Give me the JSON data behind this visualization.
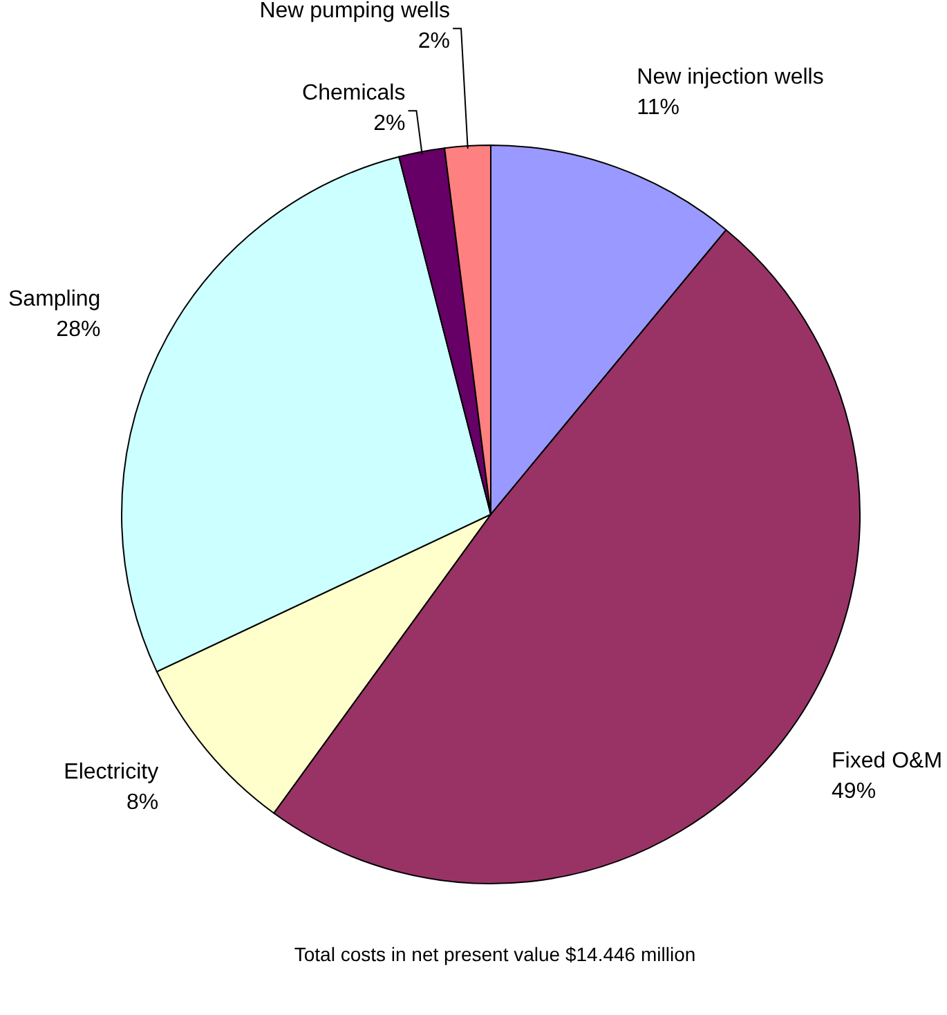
{
  "chart_data": {
    "type": "pie",
    "categories": [
      "New injection wells",
      "Fixed O&M",
      "Electricity",
      "Sampling",
      "Chemicals",
      "New pumping wells"
    ],
    "values": [
      11,
      49,
      8,
      28,
      2,
      2
    ],
    "value_labels": [
      "11%",
      "49%",
      "8%",
      "28%",
      "2%",
      "2%"
    ],
    "colors": [
      "#9999ff",
      "#993366",
      "#ffffcc",
      "#ccffff",
      "#660066",
      "#ff8080"
    ],
    "annotations": [
      "Total costs in net present value $14.446 million"
    ]
  }
}
